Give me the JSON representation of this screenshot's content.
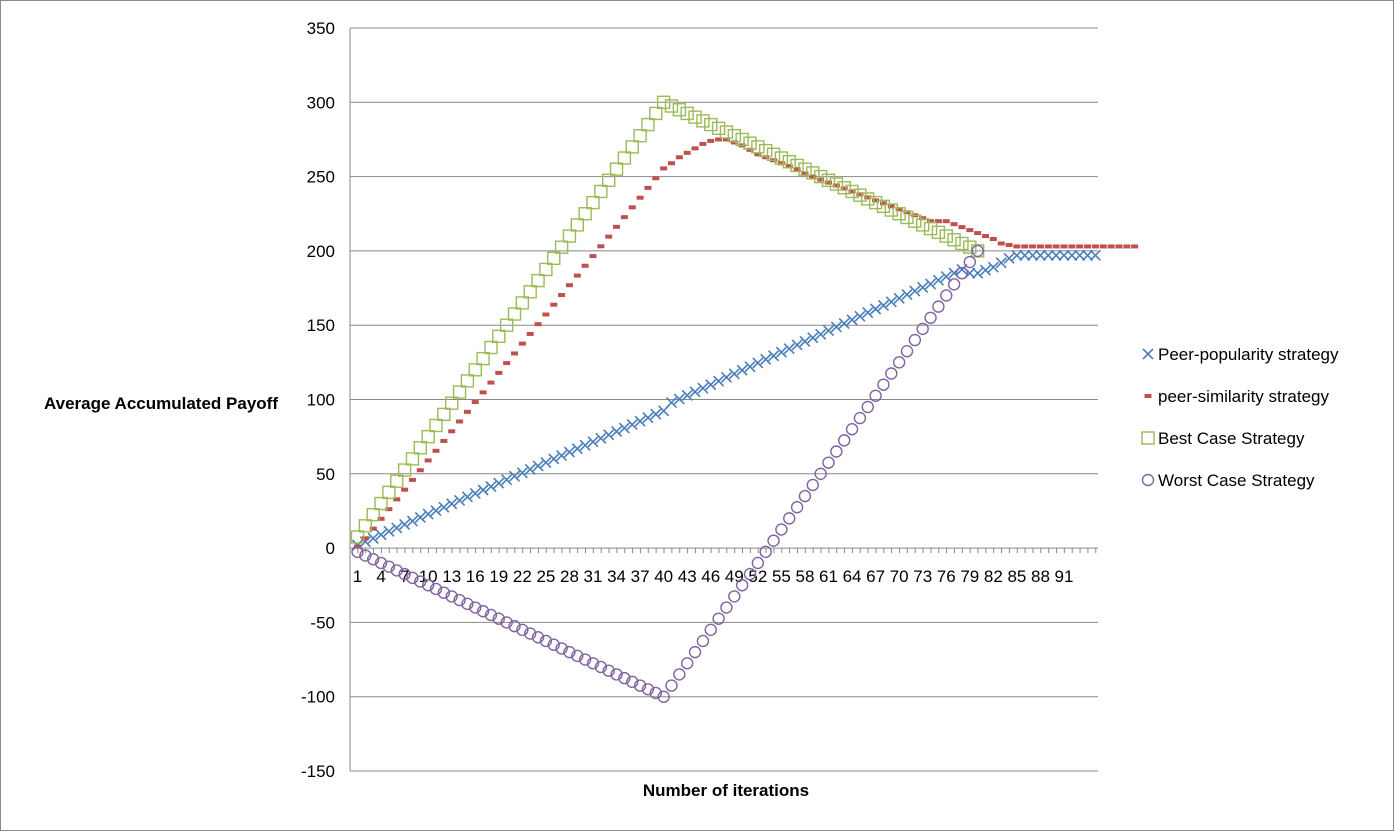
{
  "chart_data": {
    "type": "scatter",
    "title": "",
    "xlabel": "Number of iterations",
    "ylabel": "Average Accumulated Payoff",
    "ylim": [
      -150,
      350
    ],
    "yticks": [
      -150,
      -100,
      -50,
      0,
      50,
      100,
      150,
      200,
      250,
      300,
      350
    ],
    "xlim": [
      1,
      101
    ],
    "xtick_labels": [
      "1",
      "4",
      "7",
      "10",
      "13",
      "16",
      "19",
      "22",
      "25",
      "28",
      "31",
      "34",
      "37",
      "40",
      "43",
      "46",
      "49",
      "52",
      "55",
      "58",
      "61",
      "64",
      "67",
      "70",
      "73",
      "76",
      "79",
      "82",
      "85",
      "88",
      "91"
    ],
    "grid": "horizontal",
    "legend_position": "right",
    "series": [
      {
        "name": "Peer-popularity strategy",
        "marker": "x",
        "color": "#4a7ebb",
        "x": [
          1,
          2,
          3,
          4,
          5,
          6,
          7,
          8,
          9,
          10,
          11,
          12,
          13,
          14,
          15,
          16,
          17,
          18,
          19,
          20,
          21,
          22,
          23,
          24,
          25,
          26,
          27,
          28,
          29,
          30,
          31,
          32,
          33,
          34,
          35,
          36,
          37,
          38,
          39,
          40,
          41,
          42,
          43,
          44,
          45,
          46,
          47,
          48,
          49,
          50,
          51,
          52,
          53,
          54,
          55,
          56,
          57,
          58,
          59,
          60,
          61,
          62,
          63,
          64,
          65,
          66,
          67,
          68,
          69,
          70,
          71,
          72,
          73,
          74,
          75,
          76,
          77,
          78,
          79,
          80,
          81,
          82,
          83,
          84,
          85,
          86,
          87,
          88,
          89,
          90,
          91,
          92,
          93,
          94,
          95
        ],
        "y": [
          2,
          4.3,
          6.6,
          9,
          11.3,
          13.6,
          15.9,
          18.2,
          20.6,
          22.9,
          25.2,
          27.5,
          29.8,
          32.1,
          34.5,
          36.8,
          39.1,
          41.4,
          43.7,
          46,
          48.4,
          50.7,
          53,
          55.3,
          57.6,
          60,
          62.3,
          64.6,
          66.9,
          69.2,
          71.5,
          73.9,
          76.2,
          78.5,
          80.8,
          83.1,
          85.4,
          87.8,
          90.1,
          92.4,
          97.9,
          100.3,
          102.8,
          105.2,
          107.6,
          110,
          112.4,
          114.9,
          117.3,
          119.7,
          122.1,
          124.6,
          127,
          129.4,
          131.8,
          134.2,
          136.7,
          139.1,
          141.5,
          143.9,
          146.4,
          148.8,
          151.2,
          153.6,
          156,
          158.5,
          160.9,
          163.3,
          165.7,
          168.1,
          170.6,
          173,
          175.4,
          177.8,
          180.3,
          182.7,
          185.1,
          187.5,
          185,
          185,
          187,
          189,
          192,
          195,
          197,
          197,
          197,
          197,
          197,
          197,
          197,
          197,
          197,
          197,
          197
        ]
      },
      {
        "name": "peer-similarity strategy",
        "marker": "dash",
        "color": "#c0504d",
        "x": [
          1,
          2,
          3,
          4,
          5,
          6,
          7,
          8,
          9,
          10,
          11,
          12,
          13,
          14,
          15,
          16,
          17,
          18,
          19,
          20,
          21,
          22,
          23,
          24,
          25,
          26,
          27,
          28,
          29,
          30,
          31,
          32,
          33,
          34,
          35,
          36,
          37,
          38,
          39,
          40,
          41,
          42,
          43,
          44,
          45,
          46,
          47,
          48,
          49,
          50,
          51,
          52,
          53,
          54,
          55,
          56,
          57,
          58,
          59,
          60,
          61,
          62,
          63,
          64,
          65,
          66,
          67,
          68,
          69,
          70,
          71,
          72,
          73,
          74,
          75,
          76,
          77,
          78,
          79,
          80,
          81,
          82,
          83,
          84,
          85,
          86,
          87,
          88,
          89,
          90,
          91,
          92,
          93,
          94,
          95,
          96,
          97,
          98,
          99,
          100
        ],
        "y": [
          1,
          6.6,
          13.1,
          19.7,
          26.2,
          32.8,
          39.3,
          45.9,
          52.4,
          59,
          65.5,
          72.1,
          78.6,
          85.2,
          91.7,
          98.3,
          104.8,
          111.4,
          117.9,
          124.5,
          131,
          137.6,
          144.1,
          150.7,
          157.2,
          163.8,
          170.3,
          176.9,
          183.4,
          190,
          196.5,
          203.1,
          209.6,
          216.2,
          222.7,
          229.3,
          235.8,
          242.4,
          248.9,
          255.5,
          259,
          263,
          266,
          269,
          272,
          274,
          275,
          275,
          273,
          271,
          268,
          265,
          263,
          261,
          259,
          257,
          255,
          252,
          250,
          248,
          246,
          244,
          242,
          240,
          238,
          236,
          234,
          232,
          230,
          228,
          226,
          224,
          222,
          220,
          220,
          220,
          218,
          216,
          214,
          212,
          210,
          208,
          205,
          204,
          203,
          203,
          203,
          203,
          203,
          203,
          203,
          203,
          203,
          203,
          203,
          203,
          203,
          203,
          203,
          203
        ]
      },
      {
        "name": "Best Case Strategy",
        "marker": "square",
        "color": "#9bbb59",
        "x": [
          1,
          2,
          3,
          4,
          5,
          6,
          7,
          8,
          9,
          10,
          11,
          12,
          13,
          14,
          15,
          16,
          17,
          18,
          19,
          20,
          21,
          22,
          23,
          24,
          25,
          26,
          27,
          28,
          29,
          30,
          31,
          32,
          33,
          34,
          35,
          36,
          37,
          38,
          39,
          40,
          41,
          42,
          43,
          44,
          45,
          46,
          47,
          48,
          49,
          50,
          51,
          52,
          53,
          54,
          55,
          56,
          57,
          58,
          59,
          60,
          61,
          62,
          63,
          64,
          65,
          66,
          67,
          68,
          69,
          70,
          71,
          72,
          73,
          74,
          75,
          76,
          77,
          78,
          79,
          80
        ],
        "y": [
          7.5,
          15,
          22.5,
          30,
          37.5,
          45,
          52.5,
          60,
          67.5,
          75,
          82.5,
          90,
          97.5,
          105,
          112.5,
          120,
          127.5,
          135,
          142.5,
          150,
          157.5,
          165,
          172.5,
          180,
          187.5,
          195,
          202.5,
          210,
          217.5,
          225,
          232.5,
          240,
          247.5,
          255,
          262.5,
          270,
          277.5,
          285,
          292.5,
          300,
          297.5,
          295,
          292.5,
          290,
          287.5,
          285,
          282.5,
          280,
          277.5,
          275,
          272.5,
          270,
          267.5,
          265,
          262.5,
          260,
          257.5,
          255,
          252.5,
          250,
          247.5,
          245,
          242.5,
          240,
          237.5,
          235,
          232.5,
          230,
          227.5,
          225,
          222.5,
          220,
          217.5,
          215,
          212.5,
          210,
          207.5,
          205,
          202.5,
          200
        ]
      },
      {
        "name": "Worst Case Strategy",
        "marker": "circle",
        "color": "#8064a2",
        "x": [
          1,
          2,
          3,
          4,
          5,
          6,
          7,
          8,
          9,
          10,
          11,
          12,
          13,
          14,
          15,
          16,
          17,
          18,
          19,
          20,
          21,
          22,
          23,
          24,
          25,
          26,
          27,
          28,
          29,
          30,
          31,
          32,
          33,
          34,
          35,
          36,
          37,
          38,
          39,
          40,
          41,
          42,
          43,
          44,
          45,
          46,
          47,
          48,
          49,
          50,
          51,
          52,
          53,
          54,
          55,
          56,
          57,
          58,
          59,
          60,
          61,
          62,
          63,
          64,
          65,
          66,
          67,
          68,
          69,
          70,
          71,
          72,
          73,
          74,
          75,
          76,
          77,
          78,
          79,
          80
        ],
        "y": [
          -2.5,
          -5,
          -7.5,
          -10,
          -12.5,
          -15,
          -17.5,
          -20,
          -22.5,
          -25,
          -27.5,
          -30,
          -32.5,
          -35,
          -37.5,
          -40,
          -42.5,
          -45,
          -47.5,
          -50,
          -52.5,
          -55,
          -57.5,
          -60,
          -62.5,
          -65,
          -67.5,
          -70,
          -72.5,
          -75,
          -77.5,
          -80,
          -82.5,
          -85,
          -87.5,
          -90,
          -92.5,
          -95,
          -97.5,
          -100,
          -92.5,
          -85,
          -77.5,
          -70,
          -62.5,
          -55,
          -47.5,
          -40,
          -32.5,
          -25,
          -17.5,
          -10,
          -2.5,
          5,
          12.5,
          20,
          27.5,
          35,
          42.5,
          50,
          57.5,
          65,
          72.5,
          80,
          87.5,
          95,
          102.5,
          110,
          117.5,
          125,
          132.5,
          140,
          147.5,
          155,
          162.5,
          170,
          177.5,
          185,
          192.5,
          200
        ]
      }
    ]
  }
}
